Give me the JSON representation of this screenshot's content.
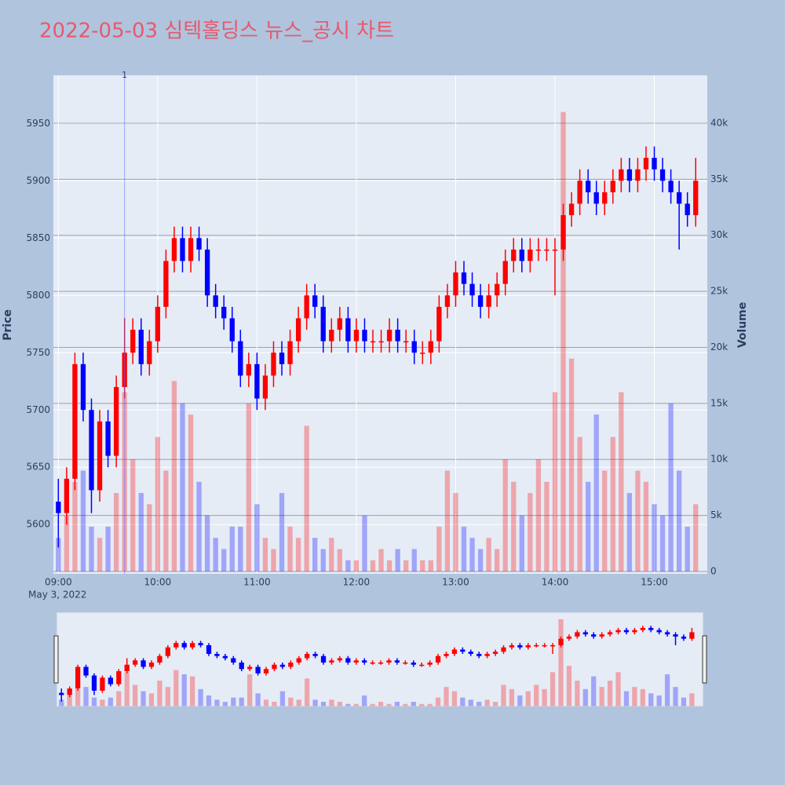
{
  "chart_data": {
    "type": "candlestick",
    "title": "2022-05-03 심텍홀딩스 뉴스_공시 차트",
    "y_label": "Price",
    "y2_label": "Volume",
    "x_sublabel": "May 3, 2022",
    "up_color": "#ff0000",
    "down_color": "#0000ff",
    "x": [
      "09:00",
      "09:05",
      "09:10",
      "09:15",
      "09:20",
      "09:25",
      "09:30",
      "09:35",
      "09:40",
      "09:45",
      "09:50",
      "09:55",
      "10:00",
      "10:05",
      "10:10",
      "10:15",
      "10:20",
      "10:25",
      "10:30",
      "10:35",
      "10:40",
      "10:45",
      "10:50",
      "10:55",
      "11:00",
      "11:05",
      "11:10",
      "11:15",
      "11:20",
      "11:25",
      "11:30",
      "11:35",
      "11:40",
      "11:45",
      "11:50",
      "11:55",
      "12:00",
      "12:05",
      "12:10",
      "12:15",
      "12:20",
      "12:25",
      "12:30",
      "12:35",
      "12:40",
      "12:45",
      "12:50",
      "12:55",
      "13:00",
      "13:05",
      "13:10",
      "13:15",
      "13:20",
      "13:25",
      "13:30",
      "13:35",
      "13:40",
      "13:45",
      "13:50",
      "13:55",
      "14:00",
      "14:05",
      "14:10",
      "14:15",
      "14:20",
      "14:25",
      "14:30",
      "14:35",
      "14:40",
      "14:45",
      "14:50",
      "14:55",
      "15:00",
      "15:05",
      "15:10",
      "15:15",
      "15:20",
      "15:25"
    ],
    "open": [
      5620,
      5610,
      5640,
      5740,
      5700,
      5630,
      5690,
      5660,
      5720,
      5750,
      5770,
      5740,
      5760,
      5790,
      5830,
      5850,
      5830,
      5850,
      5840,
      5800,
      5790,
      5780,
      5760,
      5730,
      5740,
      5710,
      5730,
      5750,
      5740,
      5760,
      5780,
      5800,
      5790,
      5760,
      5770,
      5780,
      5760,
      5770,
      5760,
      5760,
      5760,
      5770,
      5760,
      5760,
      5750,
      5750,
      5760,
      5790,
      5800,
      5820,
      5810,
      5800,
      5790,
      5800,
      5810,
      5830,
      5840,
      5830,
      5840,
      5840,
      5840,
      5840,
      5870,
      5880,
      5900,
      5890,
      5880,
      5890,
      5900,
      5910,
      5900,
      5910,
      5920,
      5910,
      5900,
      5890,
      5880,
      5870
    ],
    "high": [
      5640,
      5650,
      5750,
      5750,
      5710,
      5700,
      5700,
      5730,
      5780,
      5780,
      5780,
      5770,
      5800,
      5840,
      5860,
      5860,
      5860,
      5860,
      5850,
      5810,
      5800,
      5790,
      5770,
      5750,
      5750,
      5740,
      5760,
      5760,
      5770,
      5790,
      5810,
      5810,
      5800,
      5780,
      5790,
      5790,
      5780,
      5780,
      5770,
      5770,
      5780,
      5780,
      5770,
      5770,
      5760,
      5770,
      5800,
      5810,
      5830,
      5830,
      5820,
      5810,
      5810,
      5820,
      5840,
      5850,
      5850,
      5850,
      5850,
      5850,
      5850,
      5880,
      5890,
      5910,
      5910,
      5900,
      5900,
      5910,
      5920,
      5920,
      5920,
      5930,
      5930,
      5920,
      5910,
      5900,
      5890,
      5920
    ],
    "low": [
      5580,
      5600,
      5630,
      5690,
      5610,
      5620,
      5650,
      5650,
      5710,
      5740,
      5730,
      5730,
      5750,
      5780,
      5820,
      5820,
      5820,
      5830,
      5790,
      5780,
      5770,
      5750,
      5720,
      5720,
      5700,
      5700,
      5720,
      5730,
      5730,
      5750,
      5770,
      5780,
      5750,
      5750,
      5760,
      5750,
      5750,
      5750,
      5750,
      5750,
      5750,
      5750,
      5750,
      5740,
      5740,
      5740,
      5750,
      5780,
      5790,
      5800,
      5790,
      5780,
      5780,
      5790,
      5800,
      5820,
      5820,
      5820,
      5830,
      5830,
      5800,
      5830,
      5860,
      5870,
      5880,
      5870,
      5870,
      5880,
      5890,
      5890,
      5890,
      5900,
      5900,
      5890,
      5880,
      5840,
      5860,
      5860
    ],
    "close": [
      5610,
      5640,
      5740,
      5700,
      5630,
      5690,
      5660,
      5720,
      5750,
      5770,
      5740,
      5760,
      5790,
      5830,
      5850,
      5830,
      5850,
      5840,
      5800,
      5790,
      5780,
      5760,
      5730,
      5740,
      5710,
      5730,
      5750,
      5740,
      5760,
      5780,
      5800,
      5790,
      5760,
      5770,
      5780,
      5760,
      5770,
      5760,
      5760,
      5760,
      5770,
      5760,
      5760,
      5750,
      5750,
      5760,
      5790,
      5800,
      5820,
      5810,
      5800,
      5790,
      5800,
      5810,
      5830,
      5840,
      5830,
      5840,
      5840,
      5840,
      5840,
      5870,
      5880,
      5900,
      5890,
      5880,
      5890,
      5900,
      5910,
      5900,
      5910,
      5920,
      5910,
      5900,
      5890,
      5880,
      5870,
      5900
    ],
    "volume": [
      3000,
      5000,
      8000,
      9000,
      4000,
      3000,
      4000,
      7000,
      16000,
      10000,
      7000,
      6000,
      12000,
      9000,
      17000,
      15000,
      14000,
      8000,
      5000,
      3000,
      2000,
      4000,
      4000,
      15000,
      6000,
      3000,
      2000,
      7000,
      4000,
      3000,
      13000,
      3000,
      2000,
      3000,
      2000,
      1000,
      1000,
      5000,
      1000,
      2000,
      1000,
      2000,
      1000,
      2000,
      1000,
      1000,
      4000,
      9000,
      7000,
      4000,
      3000,
      2000,
      3000,
      2000,
      10000,
      8000,
      5000,
      7000,
      10000,
      8000,
      16000,
      41000,
      19000,
      12000,
      8000,
      14000,
      9000,
      12000,
      16000,
      7000,
      9000,
      8000,
      6000,
      5000,
      15000,
      9000,
      4000,
      6000
    ],
    "xlim": [
      "08:57",
      "15:32"
    ],
    "xticks": [
      "09:00",
      "10:00",
      "11:00",
      "12:00",
      "13:00",
      "14:00",
      "15:00"
    ],
    "ylim": [
      5557,
      5992
    ],
    "yticks": [
      5600,
      5650,
      5700,
      5750,
      5800,
      5850,
      5900,
      5950
    ],
    "y2lim": [
      -210,
      44270
    ],
    "y2ticks": [
      0,
      {
        "value": 5000,
        "label": "5k"
      },
      {
        "value": 10000,
        "label": "10k"
      },
      {
        "value": 15000,
        "label": "15k"
      },
      {
        "value": 20000,
        "label": "20k"
      },
      {
        "value": 25000,
        "label": "25k"
      },
      {
        "value": 30000,
        "label": "30k"
      },
      {
        "value": 35000,
        "label": "35k"
      },
      {
        "value": 40000,
        "label": "40k"
      }
    ],
    "annotations": [
      {
        "x": "09:40",
        "text": "1"
      }
    ]
  }
}
